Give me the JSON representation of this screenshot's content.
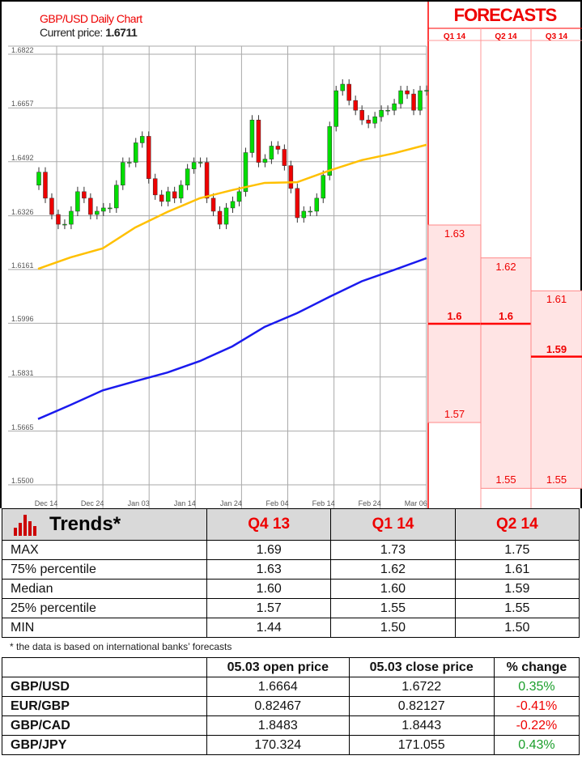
{
  "header": {
    "title": "GBP/USD Daily Chart",
    "current_price_label": "Current price:",
    "current_price": "1.6711"
  },
  "forecasts": {
    "title": "FORECASTS",
    "columns": [
      {
        "label": "Q1 14",
        "high": 1.63,
        "median": 1.6,
        "low": 1.57,
        "high_label": "1.63",
        "median_label": "1.6",
        "low_label": "1.57"
      },
      {
        "label": "Q2 14",
        "high": 1.62,
        "median": 1.6,
        "low": 1.55,
        "high_label": "1.62",
        "median_label": "1.6",
        "low_label": "1.55"
      },
      {
        "label": "Q3 14",
        "high": 1.61,
        "median": 1.59,
        "low": 1.55,
        "high_label": "1.61",
        "median_label": "1.59",
        "low_label": "1.55"
      }
    ],
    "colors": {
      "fill": "#ffe4e4",
      "line": "#ff0000"
    }
  },
  "chart_data": {
    "type": "candlestick",
    "title": "GBP/USD Daily Chart",
    "y_ticks": [
      "1.6822",
      "1.6657",
      "1.6492",
      "1.6326",
      "1.6161",
      "1.5996",
      "1.5831",
      "1.5665",
      "1.5500"
    ],
    "ylim": [
      1.55,
      1.6822
    ],
    "x_ticks": [
      "Dec 14",
      "Dec 24",
      "Jan 03",
      "Jan 14",
      "Jan 24",
      "Feb 04",
      "Feb 14",
      "Feb 24",
      "Mar 06"
    ],
    "grid": true,
    "first_open": 1.642,
    "closes": [
      1.646,
      1.638,
      1.633,
      1.63,
      1.63,
      1.634,
      1.64,
      1.638,
      1.633,
      1.634,
      1.635,
      1.635,
      1.642,
      1.649,
      1.649,
      1.655,
      1.657,
      1.644,
      1.639,
      1.637,
      1.64,
      1.638,
      1.642,
      1.647,
      1.649,
      1.649,
      1.638,
      1.634,
      1.63,
      1.635,
      1.637,
      1.64,
      1.652,
      1.662,
      1.649,
      1.65,
      1.654,
      1.653,
      1.648,
      1.641,
      1.632,
      1.634,
      1.634,
      1.638,
      1.645,
      1.66,
      1.671,
      1.673,
      1.668,
      1.665,
      1.662,
      1.661,
      1.663,
      1.665,
      1.665,
      1.667,
      1.671,
      1.67,
      1.665,
      1.671,
      1.6711
    ],
    "moving_averages": [
      {
        "color": "#ffc000",
        "values": [
          1.6163,
          1.6198,
          1.6226,
          1.629,
          1.6338,
          1.638,
          1.6405,
          1.6427,
          1.6429,
          1.6465,
          1.6497,
          1.6518,
          1.6544
        ]
      },
      {
        "color": "#1a1aee",
        "values": [
          1.5702,
          1.5745,
          1.579,
          1.5818,
          1.5845,
          1.588,
          1.5925,
          1.5985,
          1.6027,
          1.6077,
          1.6125,
          1.616,
          1.6196
        ]
      }
    ],
    "colors": {
      "up": "#00dd00",
      "down": "#ee0000"
    }
  },
  "trends": {
    "title": "Trends*",
    "columns": [
      "Q4 13",
      "Q1 14",
      "Q2 14"
    ],
    "rows": [
      {
        "label": "MAX",
        "values": [
          "1.69",
          "1.73",
          "1.75"
        ]
      },
      {
        "label": "75% percentile",
        "values": [
          "1.63",
          "1.62",
          "1.61"
        ]
      },
      {
        "label": "Median",
        "values": [
          "1.60",
          "1.60",
          "1.59"
        ]
      },
      {
        "label": "25% percentile",
        "values": [
          "1.57",
          "1.55",
          "1.55"
        ]
      },
      {
        "label": "MIN",
        "values": [
          "1.44",
          "1.50",
          "1.50"
        ]
      }
    ],
    "note": "* the data is based on international banks’ forecasts"
  },
  "prices": {
    "columns": [
      "",
      "05.03 open price",
      "05.03 close price",
      "% change"
    ],
    "rows": [
      {
        "pair": "GBP/USD",
        "open": "1.6664",
        "close": "1.6722",
        "change": "0.35%",
        "dir": "pos"
      },
      {
        "pair": "EUR/GBP",
        "open": "0.82467",
        "close": "0.82127",
        "change": "-0.41%",
        "dir": "neg"
      },
      {
        "pair": "GBP/CAD",
        "open": "1.8483",
        "close": "1.8443",
        "change": "-0.22%",
        "dir": "neg"
      },
      {
        "pair": "GBP/JPY",
        "open": "170.324",
        "close": "171.055",
        "change": "0.43%",
        "dir": "pos"
      }
    ]
  }
}
